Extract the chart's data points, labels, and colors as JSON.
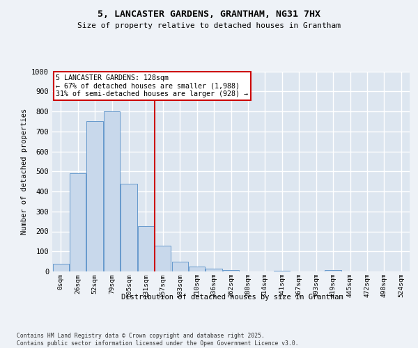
{
  "title": "5, LANCASTER GARDENS, GRANTHAM, NG31 7HX",
  "subtitle": "Size of property relative to detached houses in Grantham",
  "xlabel": "Distribution of detached houses by size in Grantham",
  "ylabel": "Number of detached properties",
  "bar_color": "#c8d8eb",
  "bar_edge_color": "#6699cc",
  "background_color": "#dde6f0",
  "grid_color": "#ffffff",
  "fig_bg_color": "#eef2f7",
  "categories": [
    "0sqm",
    "26sqm",
    "52sqm",
    "79sqm",
    "105sqm",
    "131sqm",
    "157sqm",
    "183sqm",
    "210sqm",
    "236sqm",
    "262sqm",
    "288sqm",
    "314sqm",
    "341sqm",
    "367sqm",
    "393sqm",
    "419sqm",
    "445sqm",
    "472sqm",
    "498sqm",
    "524sqm"
  ],
  "values": [
    40,
    490,
    750,
    800,
    440,
    225,
    130,
    50,
    25,
    15,
    8,
    0,
    0,
    5,
    0,
    0,
    8,
    0,
    0,
    0,
    0
  ],
  "ylim": [
    0,
    1000
  ],
  "yticks": [
    0,
    100,
    200,
    300,
    400,
    500,
    600,
    700,
    800,
    900,
    1000
  ],
  "red_line_x": 5.5,
  "annotation_title": "5 LANCASTER GARDENS: 128sqm",
  "annotation_line1": "← 67% of detached houses are smaller (1,988)",
  "annotation_line2": "31% of semi-detached houses are larger (928) →",
  "annotation_box_facecolor": "#ffffff",
  "annotation_box_edgecolor": "#cc0000",
  "red_line_color": "#cc0000",
  "footer_line1": "Contains HM Land Registry data © Crown copyright and database right 2025.",
  "footer_line2": "Contains public sector information licensed under the Open Government Licence v3.0."
}
